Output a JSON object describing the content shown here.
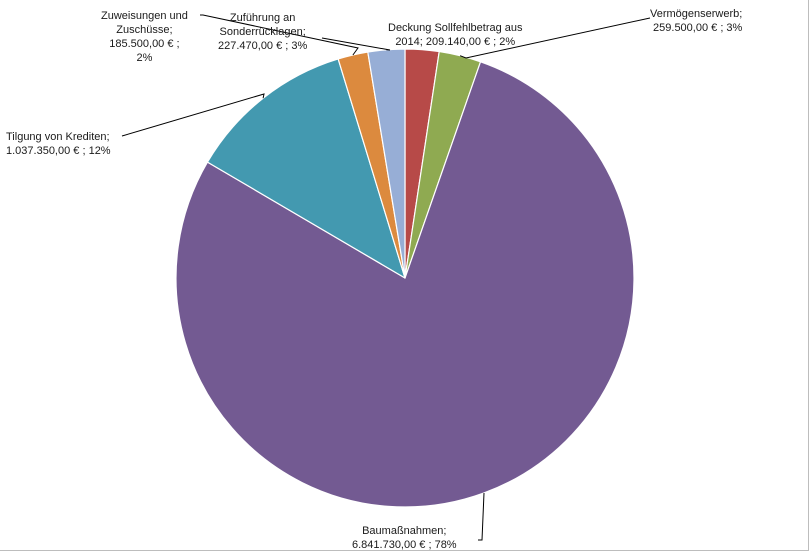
{
  "chart_data": {
    "type": "pie",
    "start_angle_deg": 0,
    "direction": "clockwise",
    "colors": [
      "#b74a48",
      "#8faa51",
      "#735a92",
      "#4399b0",
      "#dc8a3e",
      "#97aed6"
    ],
    "slices": [
      {
        "category": "Deckung Sollfehlbetrag aus 2014",
        "value": 209140.0,
        "percent": 2,
        "label_lines": [
          "Deckung Sollfehlbetrag aus",
          "2014;  209.140,00 € ; 2%"
        ]
      },
      {
        "category": "Vermögenserwerb",
        "value": 259500.0,
        "percent": 3,
        "label_lines": [
          "Vermögenserwerb;",
          "259.500,00 € ; 3%"
        ]
      },
      {
        "category": "Baumaßnahmen",
        "value": 6841730.0,
        "percent": 78,
        "label_lines": [
          "Baumaßnahmen;",
          "6.841.730,00 € ; 78%"
        ]
      },
      {
        "category": "Tilgung von Krediten",
        "value": 1037350.0,
        "percent": 12,
        "label_lines": [
          "Tilgung von Krediten;",
          "1.037.350,00 € ; 12%"
        ]
      },
      {
        "category": "Zuweisungen und Zuschüsse",
        "value": 185500.0,
        "percent": 2,
        "label_lines": [
          "Zuweisungen und",
          "Zuschüsse;",
          "185.500,00 € ;",
          "2%"
        ]
      },
      {
        "category": "Zuführung an Sonderrücklagen",
        "value": 227470.0,
        "percent": 3,
        "label_lines": [
          "Zuführung an",
          "Sonderrücklagen;",
          "227.470,00 € ; 3%"
        ]
      }
    ]
  }
}
